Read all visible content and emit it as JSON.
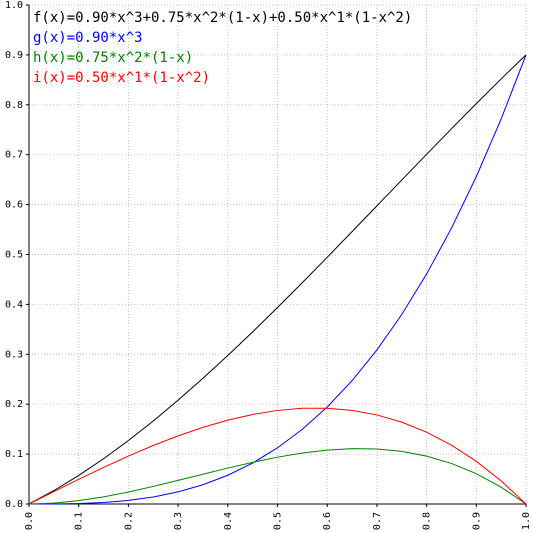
{
  "chart_data": {
    "type": "line",
    "x": [
      0,
      0.05,
      0.1,
      0.15,
      0.2,
      0.25,
      0.3,
      0.35,
      0.4,
      0.45,
      0.5,
      0.55,
      0.6,
      0.65,
      0.7,
      0.75,
      0.8,
      0.85,
      0.9,
      0.95,
      1
    ],
    "series": [
      {
        "name": "f(x)=0.90*x^3+0.75*x^2*(1-x)+0.50*x^1*(1-x^2)",
        "color": "#000000",
        "values": [
          0,
          0.0268,
          0.0572,
          0.0907,
          0.1272,
          0.1664,
          0.2081,
          0.2519,
          0.2976,
          0.345,
          0.3938,
          0.4436,
          0.4944,
          0.5458,
          0.5975,
          0.6492,
          0.7008,
          0.7519,
          0.8024,
          0.8518,
          0.9
        ]
      },
      {
        "name": "g(x)=0.90*x^3",
        "color": "#0000ff",
        "values": [
          0,
          0.0001,
          0.0009,
          0.003,
          0.0072,
          0.0141,
          0.0243,
          0.0386,
          0.0576,
          0.082,
          0.1125,
          0.1497,
          0.1944,
          0.2472,
          0.3087,
          0.3797,
          0.4608,
          0.5527,
          0.6561,
          0.7716,
          0.9
        ]
      },
      {
        "name": "h(x)=0.75*x^2*(1-x)",
        "color": "#008000",
        "values": [
          0,
          0.0018,
          0.0068,
          0.0143,
          0.024,
          0.0352,
          0.0473,
          0.0597,
          0.072,
          0.0835,
          0.0938,
          0.1021,
          0.108,
          0.1109,
          0.1103,
          0.1055,
          0.096,
          0.0813,
          0.0608,
          0.0338,
          0
        ]
      },
      {
        "name": "i(x)=0.50*x^1*(1-x^2)",
        "color": "#ff0000",
        "values": [
          0,
          0.0249,
          0.0495,
          0.0733,
          0.096,
          0.1172,
          0.1365,
          0.1536,
          0.168,
          0.1794,
          0.1875,
          0.1918,
          0.192,
          0.1877,
          0.1785,
          0.1641,
          0.144,
          0.1179,
          0.0855,
          0.0463,
          0
        ]
      }
    ],
    "xlim": [
      0,
      1
    ],
    "ylim": [
      0,
      1
    ],
    "xticks": [
      {
        "value": 0,
        "label": "0.0"
      },
      0.1,
      0.2,
      0.3,
      0.4,
      0.5,
      0.6,
      0.7,
      0.8,
      0.9,
      {
        "value": 1,
        "label": "1.0"
      }
    ],
    "yticks": [
      {
        "value": 0,
        "label": "0.0"
      },
      0.1,
      0.2,
      0.3,
      0.4,
      0.5,
      0.6,
      0.7,
      0.8,
      0.9,
      {
        "value": 1,
        "label": "1.0"
      }
    ],
    "grid": true
  }
}
